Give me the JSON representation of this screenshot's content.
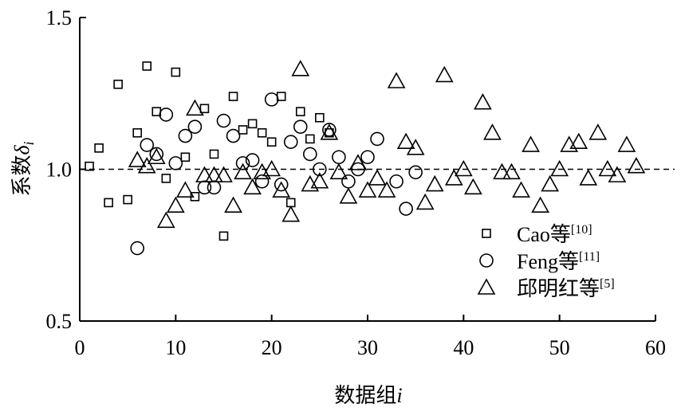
{
  "chart_data": {
    "type": "scatter",
    "xlabel": {
      "text": "数据组",
      "var": "i"
    },
    "ylabel": {
      "text": "系数",
      "symbol": "δ",
      "sub": "i"
    },
    "xlim": [
      0,
      60
    ],
    "xticks": [
      0,
      10,
      20,
      30,
      40,
      50,
      60
    ],
    "ylim": [
      0.5,
      1.5
    ],
    "yticks": [
      {
        "value": 0.5,
        "label": "0.5"
      },
      {
        "value": 1.0,
        "label": "1.0"
      },
      {
        "value": 1.5,
        "label": "1.5"
      }
    ],
    "ref_line": 1.0,
    "legend": "lower right",
    "series": [
      {
        "name": "Cao等",
        "superscript": "[10]",
        "marker": "square",
        "color": "#000000",
        "x": [
          1,
          2,
          3,
          4,
          5,
          6,
          7,
          8,
          9,
          10,
          11,
          12,
          13,
          14,
          15,
          16,
          17,
          18,
          19,
          20,
          21,
          22,
          23,
          24,
          25,
          26
        ],
        "values": [
          1.01,
          1.07,
          0.89,
          1.28,
          0.9,
          1.12,
          1.34,
          1.19,
          0.97,
          1.32,
          1.04,
          0.91,
          1.2,
          1.05,
          0.78,
          1.24,
          1.13,
          1.15,
          1.12,
          1.09,
          1.24,
          0.89,
          1.19,
          1.1,
          1.17,
          1.12
        ]
      },
      {
        "name": "Feng等",
        "superscript": "[11]",
        "marker": "circle",
        "color": "#000000",
        "x": [
          6,
          7,
          8,
          9,
          10,
          11,
          12,
          13,
          14,
          15,
          16,
          17,
          18,
          19,
          20,
          21,
          22,
          23,
          24,
          25,
          26,
          27,
          28,
          29,
          30,
          31,
          33,
          34,
          35
        ],
        "values": [
          0.74,
          1.08,
          1.05,
          1.18,
          1.02,
          1.11,
          1.14,
          0.94,
          0.94,
          1.16,
          1.11,
          1.02,
          1.03,
          0.96,
          1.23,
          0.95,
          1.09,
          1.14,
          1.05,
          1.0,
          1.13,
          1.04,
          0.96,
          1.0,
          1.04,
          1.1,
          0.96,
          0.87,
          0.99
        ]
      },
      {
        "name": "邱明红等",
        "superscript": "[5]",
        "marker": "triangle",
        "color": "#000000",
        "x": [
          6,
          7,
          8,
          9,
          10,
          11,
          12,
          13,
          14,
          15,
          16,
          17,
          18,
          19,
          20,
          21,
          22,
          23,
          24,
          25,
          26,
          27,
          28,
          29,
          30,
          31,
          32,
          33,
          34,
          35,
          36,
          37,
          38,
          39,
          40,
          41,
          42,
          43,
          44,
          45,
          46,
          47,
          48,
          49,
          50,
          51,
          52,
          53,
          54,
          55,
          56,
          57,
          58
        ],
        "values": [
          1.03,
          1.01,
          1.04,
          0.83,
          0.88,
          0.93,
          1.2,
          0.98,
          0.98,
          0.98,
          0.88,
          0.99,
          0.94,
          0.99,
          1.0,
          0.93,
          0.85,
          1.33,
          0.95,
          0.96,
          1.12,
          0.99,
          0.91,
          1.02,
          0.93,
          0.97,
          0.93,
          1.29,
          1.09,
          1.07,
          0.89,
          0.95,
          1.31,
          0.97,
          1.0,
          0.94,
          1.22,
          1.12,
          0.99,
          0.99,
          0.93,
          1.08,
          0.88,
          0.95,
          1.0,
          1.08,
          1.09,
          0.97,
          1.12,
          1.0,
          0.98,
          1.08,
          1.01
        ]
      }
    ]
  }
}
